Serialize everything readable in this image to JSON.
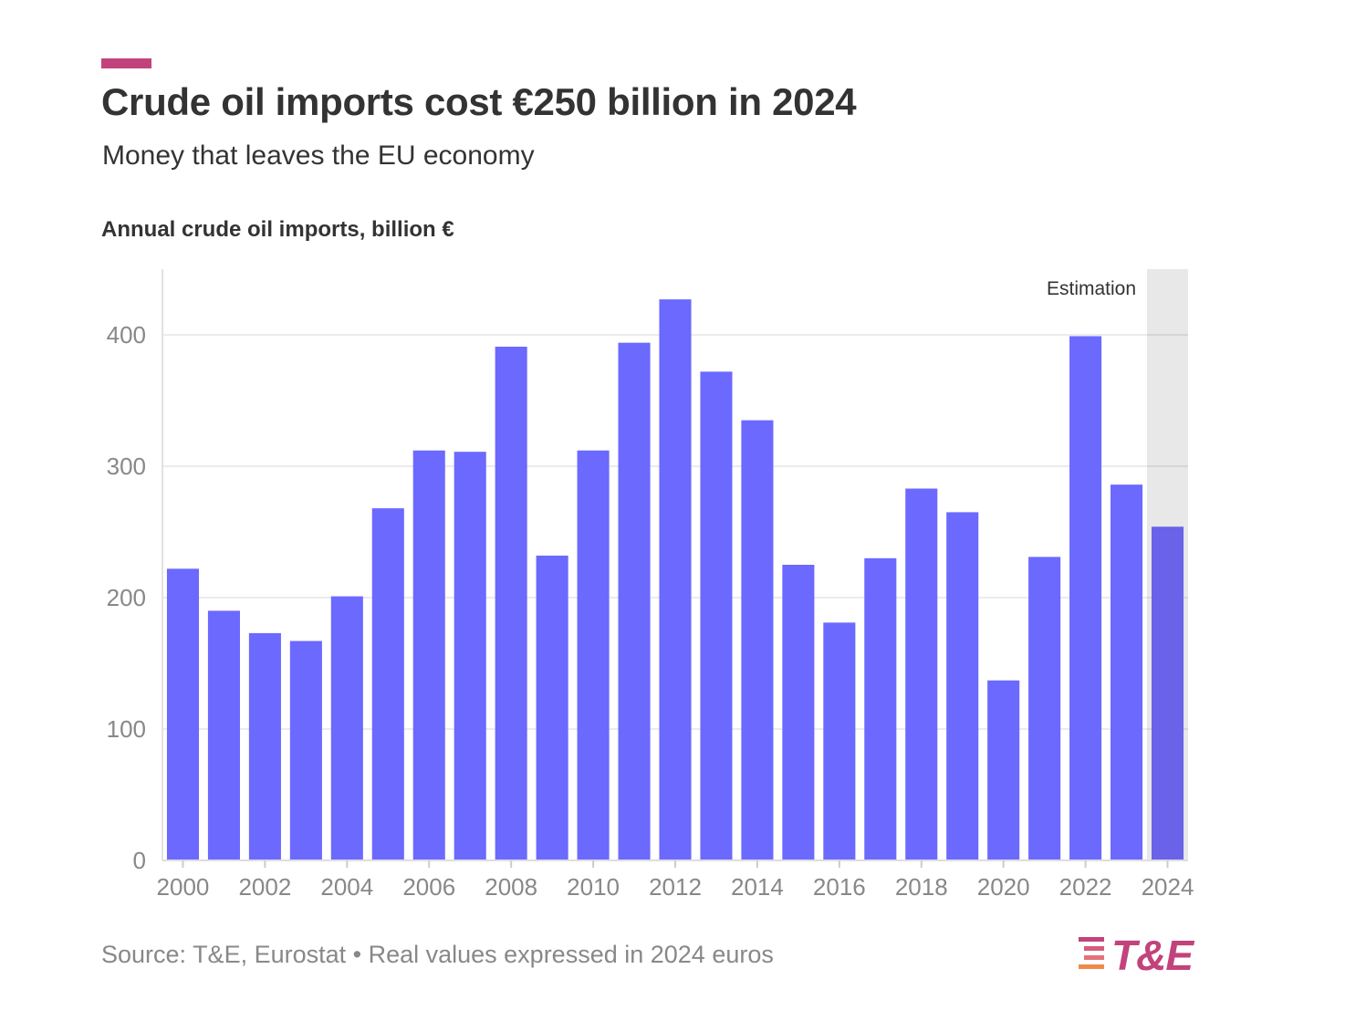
{
  "header": {
    "title": "Crude oil imports cost €250 billion in 2024",
    "subtitle": "Money that leaves the EU economy",
    "axis_caption": "Annual crude oil imports, billion €"
  },
  "footer": {
    "source": "Source: T&E, Eurostat • Real values expressed in 2024 euros"
  },
  "logo": {
    "text": "T&E"
  },
  "colors": {
    "accent": "#c2437c",
    "bar": "#6b69fe",
    "bar_estimated": "#6a62e8",
    "estimation_band": "#e8e8e8",
    "logo_pink": "#c2437c",
    "logo_orange": "#f08a4b"
  },
  "chart_data": {
    "type": "bar",
    "categories": [
      "2000",
      "2001",
      "2002",
      "2003",
      "2004",
      "2005",
      "2006",
      "2007",
      "2008",
      "2009",
      "2010",
      "2011",
      "2012",
      "2013",
      "2014",
      "2015",
      "2016",
      "2017",
      "2018",
      "2019",
      "2020",
      "2021",
      "2022",
      "2023",
      "2024"
    ],
    "values": [
      222,
      190,
      173,
      167,
      201,
      268,
      312,
      311,
      391,
      232,
      312,
      394,
      427,
      372,
      335,
      225,
      181,
      230,
      283,
      265,
      137,
      231,
      399,
      286,
      254
    ],
    "x_tick_labels": [
      "2000",
      "2002",
      "2004",
      "2006",
      "2008",
      "2010",
      "2012",
      "2014",
      "2016",
      "2018",
      "2020",
      "2022",
      "2024"
    ],
    "y_ticks": [
      0,
      100,
      200,
      300,
      400
    ],
    "ylim": [
      0,
      450
    ],
    "grid": true,
    "estimated_categories": [
      "2024"
    ],
    "estimation_label": "Estimation",
    "title": "Crude oil imports cost €250 billion in 2024",
    "ylabel": "Annual crude oil imports, billion €",
    "xlabel": ""
  }
}
